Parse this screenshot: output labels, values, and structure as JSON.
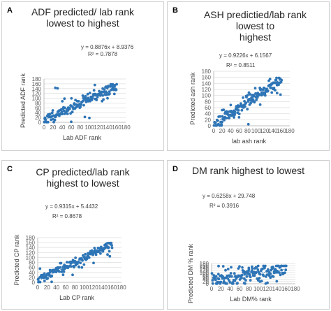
{
  "figure": {
    "panels": [
      {
        "letter": "A",
        "title": [
          "ADF predicted/ lab rank",
          "lowest to highest"
        ]
      },
      {
        "letter": "B",
        "title": [
          "ASH predictied/lab rank",
          "lowest to",
          "highest"
        ]
      },
      {
        "letter": "C",
        "title": [
          "CP predicted/lab rank",
          "highest to lowest"
        ]
      },
      {
        "letter": "D",
        "title": [
          "DM rank highest to lowest"
        ]
      }
    ],
    "colors": {
      "points": "#2e75b6",
      "trend": "#2e75b6",
      "grid": "#e6e6e6",
      "text": "#404040"
    }
  },
  "chart_data": [
    {
      "type": "scatter",
      "title": "ADF predicted/ lab rank lowest to highest",
      "xlabel": "Lab ADF rank",
      "ylabel": "Predicted ADF rank",
      "xlim": [
        0,
        180
      ],
      "ylim": [
        0,
        180
      ],
      "xticks": [
        0,
        20,
        40,
        60,
        80,
        100,
        120,
        140,
        160,
        180
      ],
      "yticks": [
        0,
        20,
        40,
        60,
        80,
        100,
        120,
        140,
        160,
        180
      ],
      "grid": true,
      "trendline": {
        "slope": 0.8876,
        "intercept": 8.9376,
        "equation": "y = 0.8876x + 8.9376",
        "r2": "R² = 0.7878"
      },
      "n_points": 160,
      "seed": 11,
      "noise_sd": 12,
      "outliers": [
        [
          25,
          143
        ],
        [
          30,
          141
        ],
        [
          112,
          155
        ],
        [
          90,
          22
        ],
        [
          100,
          18
        ],
        [
          60,
          2
        ],
        [
          45,
          98
        ],
        [
          140,
          100
        ],
        [
          155,
          118
        ],
        [
          52,
          35
        ],
        [
          128,
          88
        ]
      ]
    },
    {
      "type": "scatter",
      "title": "ASH predictied/lab rank lowest to highest",
      "xlabel": "lab ash rank",
      "ylabel": "Predicted ash rank",
      "xlim": [
        0,
        180
      ],
      "ylim": [
        0,
        180
      ],
      "xticks": [
        0,
        20,
        40,
        60,
        80,
        100,
        120,
        140,
        160,
        180
      ],
      "yticks": [
        0,
        20,
        40,
        60,
        80,
        100,
        120,
        140,
        160,
        180
      ],
      "grid": true,
      "trendline": {
        "slope": 0.9226,
        "intercept": 6.1567,
        "equation": "y = 0.9226x + 6.1567",
        "r2": "R² = 0.8511"
      },
      "n_points": 160,
      "seed": 23,
      "noise_sd": 11,
      "outliers": [
        [
          82,
          5
        ],
        [
          150,
          108
        ],
        [
          140,
          122
        ],
        [
          60,
          28
        ],
        [
          110,
          70
        ],
        [
          20,
          52
        ],
        [
          158,
          103
        ]
      ]
    },
    {
      "type": "scatter",
      "title": "CP predicted/lab rank highest to lowest",
      "xlabel": "Lab CP rank",
      "ylabel": "Predicted CP rank",
      "xlim": [
        0,
        180
      ],
      "ylim": [
        0,
        180
      ],
      "xticks": [
        0,
        20,
        40,
        60,
        80,
        100,
        120,
        140,
        160,
        180
      ],
      "yticks": [
        0,
        20,
        40,
        60,
        80,
        100,
        120,
        140,
        160,
        180
      ],
      "grid": true,
      "trendline": {
        "slope": 0.9315,
        "intercept": 5.4432,
        "equation": "y = 0.9315x + 5.4432",
        "r2": "R² = 0.8678"
      },
      "n_points": 160,
      "seed": 37,
      "noise_sd": 11,
      "outliers": [
        [
          5,
          55
        ],
        [
          75,
          30
        ],
        [
          120,
          78
        ],
        [
          150,
          112
        ],
        [
          30,
          2
        ],
        [
          155,
          105
        ],
        [
          95,
          60
        ]
      ]
    },
    {
      "type": "scatter",
      "title": "DM rank highest to lowest",
      "xlabel": "Lab DM% rank",
      "ylabel": "Predicted DM % rank",
      "xlim": [
        0,
        180
      ],
      "ylim": [
        0,
        180
      ],
      "xticks": [
        0,
        20,
        40,
        60,
        80,
        100,
        120,
        140,
        160,
        180
      ],
      "yticks": [
        0,
        20,
        40,
        60,
        80,
        100,
        120,
        140,
        160,
        180
      ],
      "grid": true,
      "trendline": {
        "slope": 0.6258,
        "intercept": 29.748,
        "equation": "y = 0.6258x + 29.748",
        "r2": "R² = 0.3916"
      },
      "n_points": 160,
      "seed": 53,
      "noise_sd": 36,
      "outliers": [
        [
          15,
          157
        ],
        [
          25,
          155
        ],
        [
          42,
          146
        ],
        [
          60,
          153
        ],
        [
          100,
          158
        ],
        [
          150,
          157
        ],
        [
          10,
          2
        ],
        [
          70,
          5
        ],
        [
          120,
          8
        ],
        [
          140,
          22
        ],
        [
          30,
          120
        ],
        [
          80,
          140
        ]
      ]
    }
  ]
}
